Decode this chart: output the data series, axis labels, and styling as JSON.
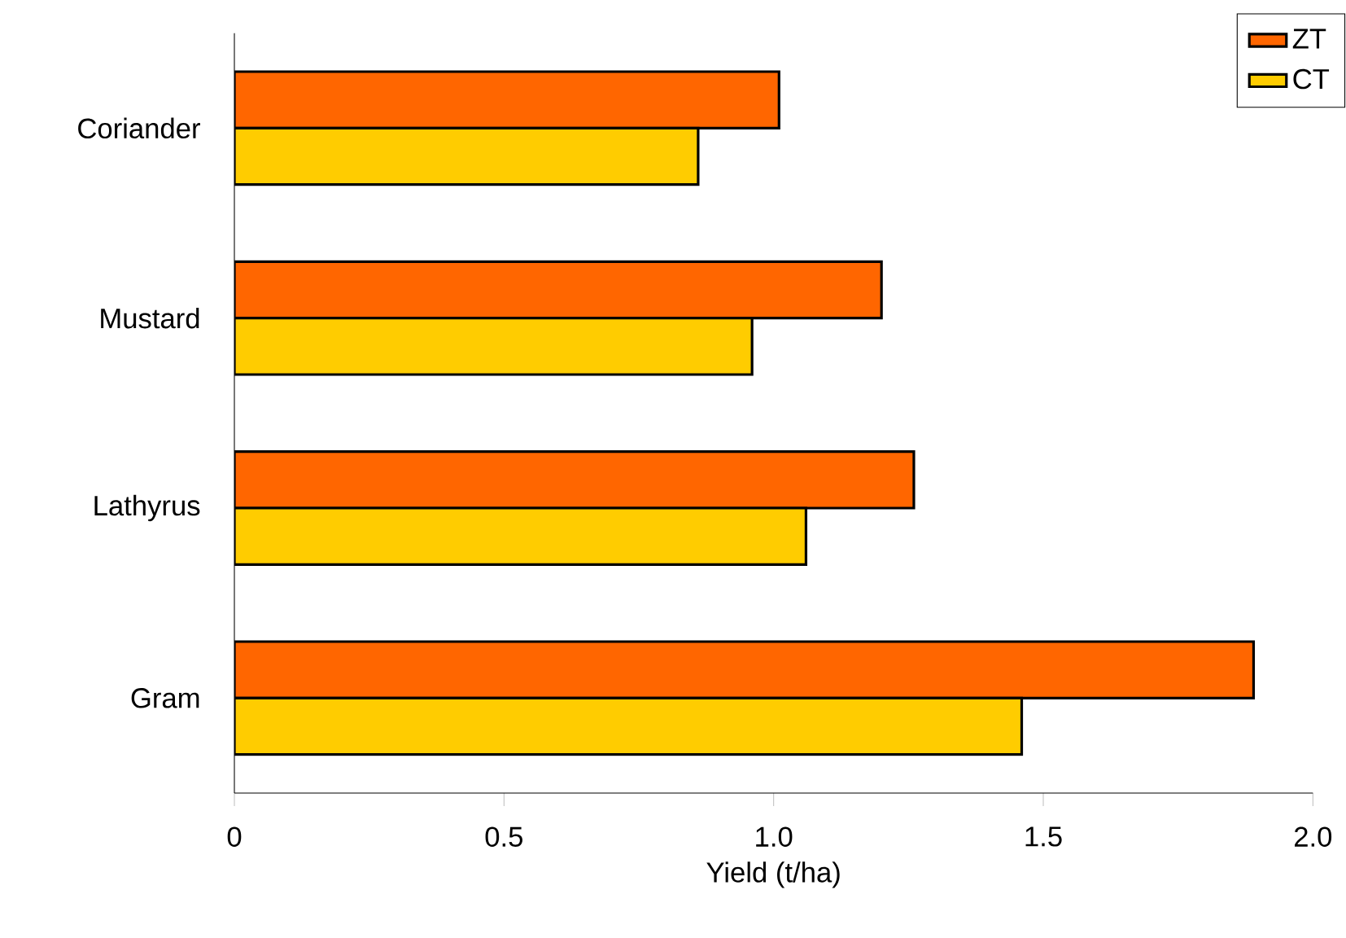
{
  "chart_data": {
    "type": "bar",
    "orientation": "horizontal",
    "categories": [
      "Coriander",
      "Mustard",
      "Lathyrus",
      "Gram"
    ],
    "series": [
      {
        "name": "ZT",
        "color": "#ff6600",
        "values": [
          1.01,
          1.2,
          1.26,
          1.89
        ]
      },
      {
        "name": "CT",
        "color": "#ffcc00",
        "values": [
          0.86,
          0.96,
          1.06,
          1.46
        ]
      }
    ],
    "xlabel": "Yield (t/ha)",
    "xlim": [
      0,
      2
    ],
    "xticks": [
      0,
      {
        "value": 0.5,
        "label": "0.5"
      },
      {
        "value": 1,
        "label": "1.0"
      },
      {
        "value": 1.5,
        "label": "1.5"
      },
      {
        "value": 2,
        "label": "2.0"
      }
    ],
    "legend": "top right"
  }
}
